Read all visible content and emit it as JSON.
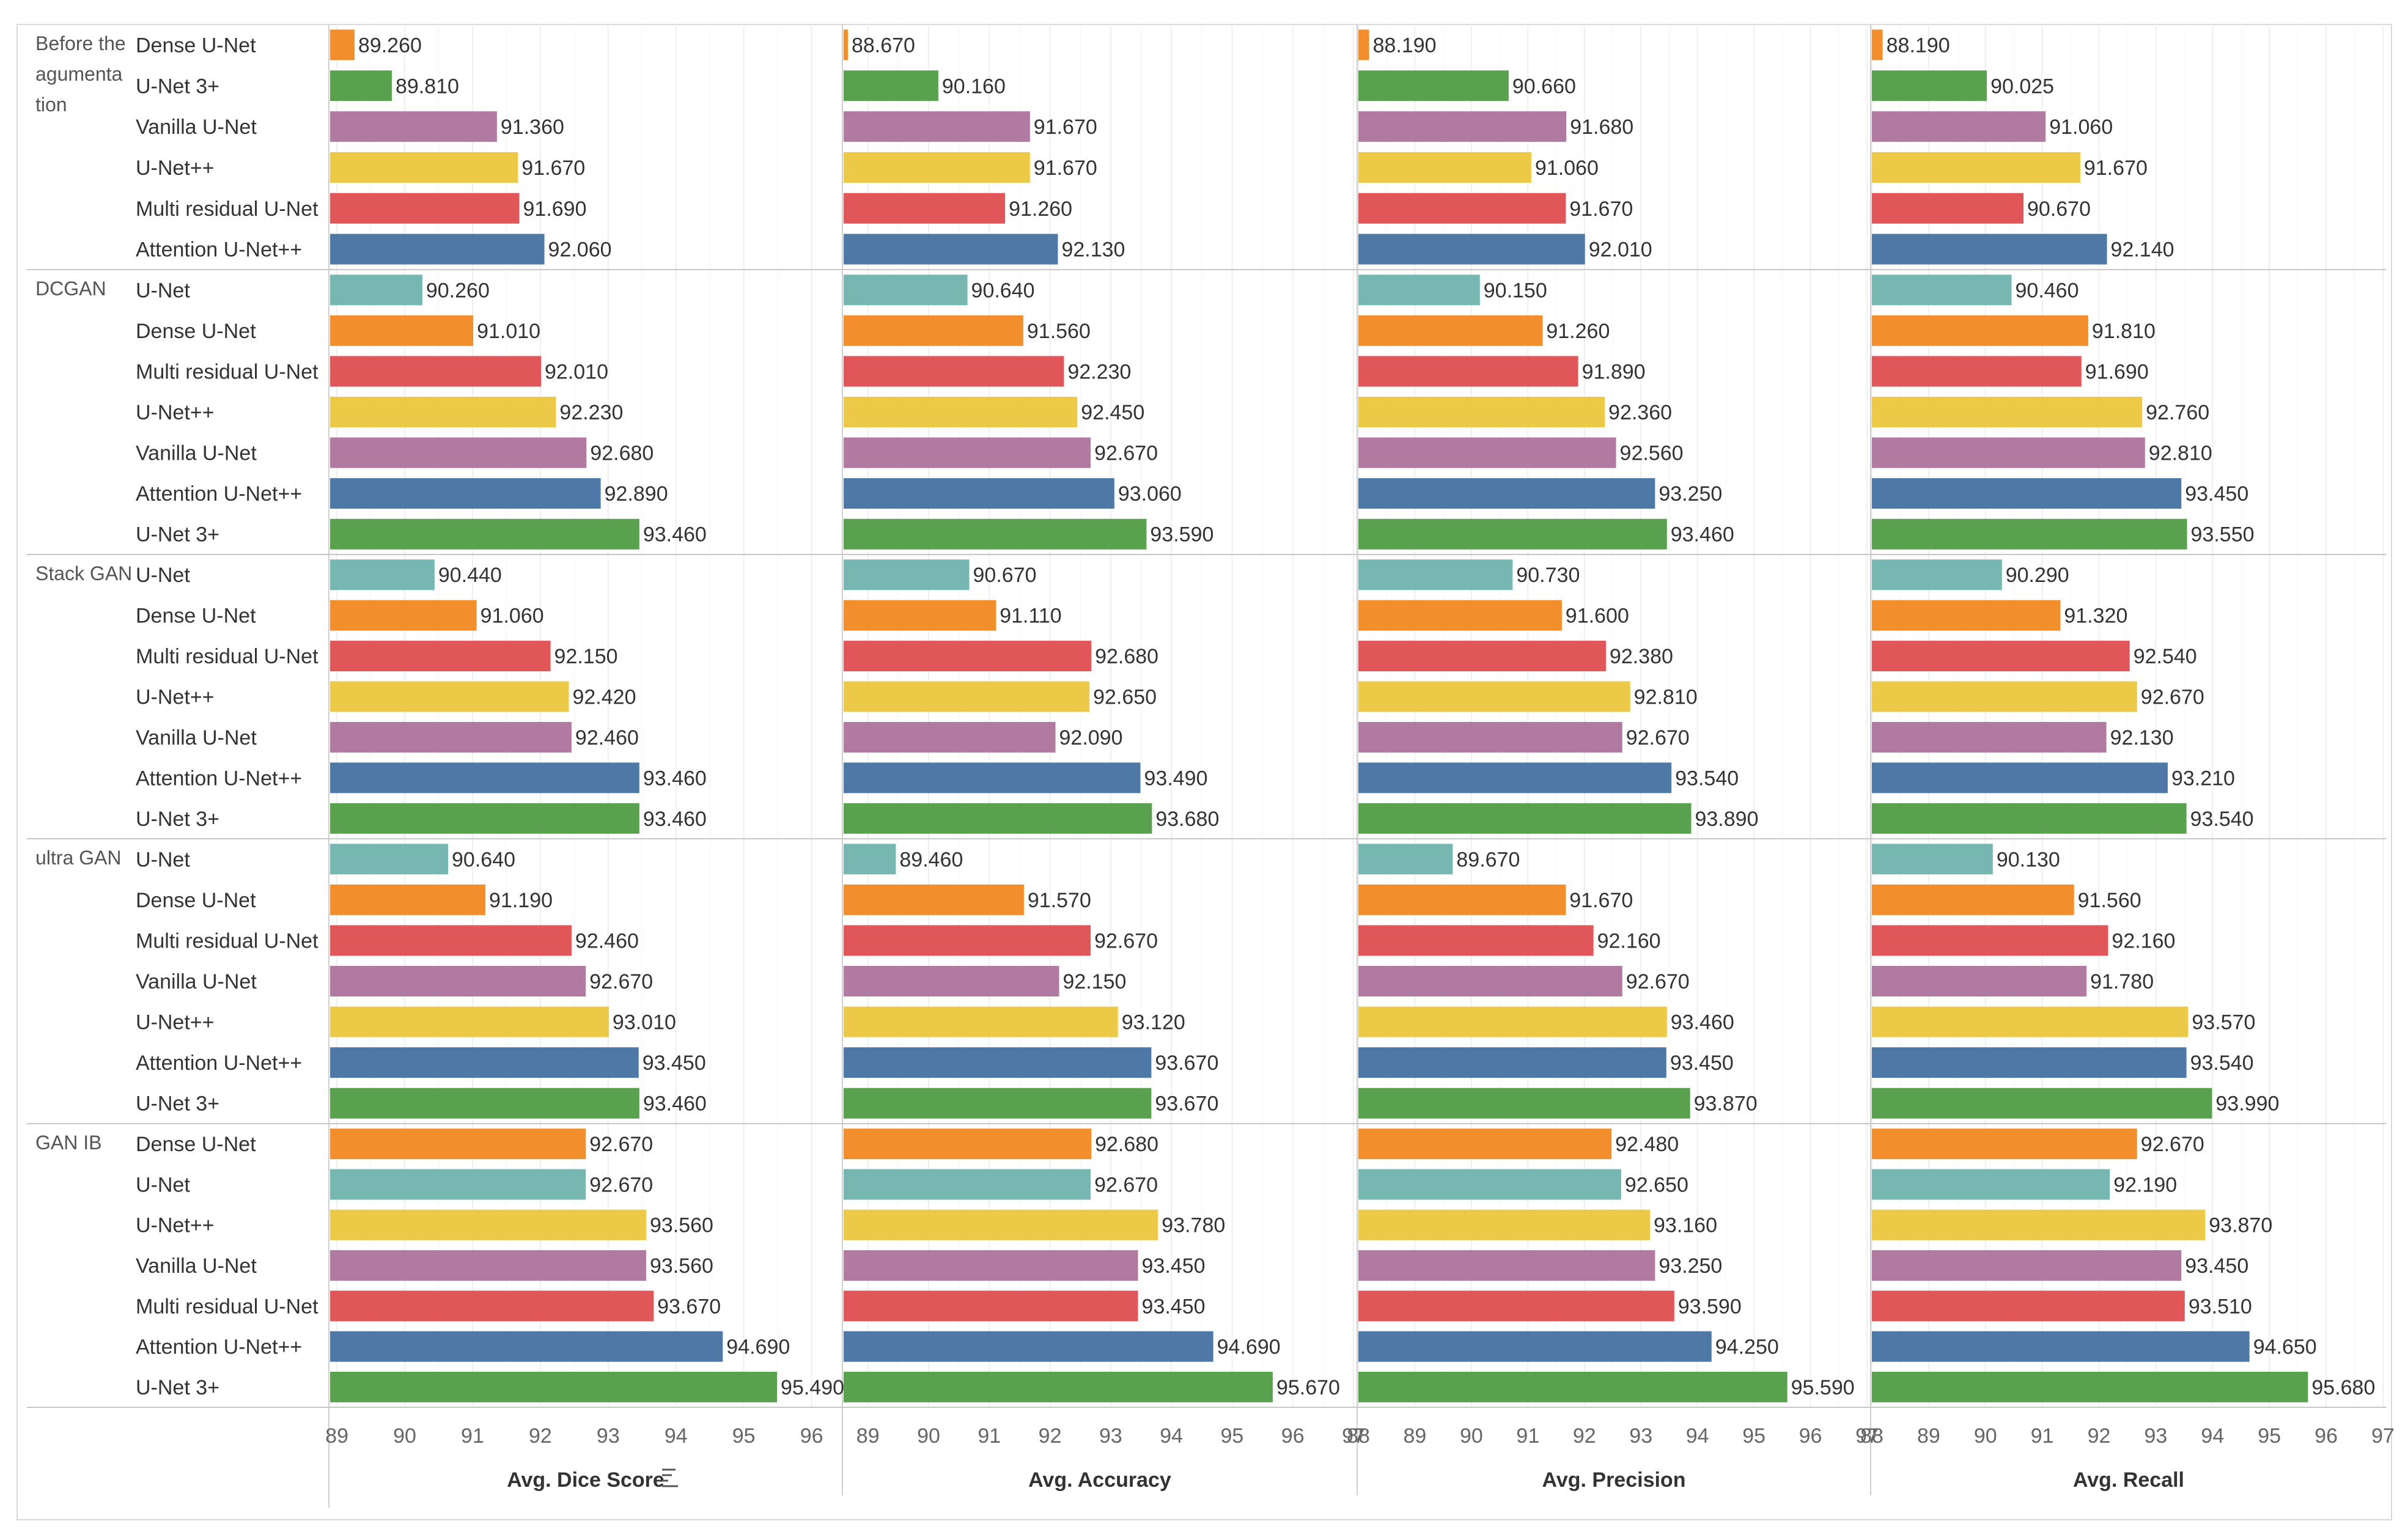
{
  "chart_data": {
    "type": "bar",
    "orientation": "horizontal",
    "measures": [
      {
        "key": "dice",
        "title": "Avg. Dice Score",
        "sort_icon": "sort-descending-icon",
        "xlim": [
          88.9,
          96.4
        ],
        "ticks": [
          89,
          90,
          91,
          92,
          93,
          94,
          95,
          96
        ]
      },
      {
        "key": "acc",
        "title": "Avg. Accuracy",
        "xlim": [
          88.6,
          97
        ],
        "ticks": [
          89,
          90,
          91,
          92,
          93,
          94,
          95,
          96,
          97
        ]
      },
      {
        "key": "prec",
        "title": "Avg. Precision",
        "xlim": [
          88,
          97
        ],
        "ticks": [
          88,
          89,
          90,
          91,
          92,
          93,
          94,
          95,
          96,
          97
        ]
      },
      {
        "key": "rec",
        "title": "Avg. Recall",
        "xlim": [
          88,
          97
        ],
        "ticks": [
          88,
          89,
          90,
          91,
          92,
          93,
          94,
          95,
          96,
          97
        ]
      }
    ],
    "model_colors": {
      "U-Net": "#76b7b2",
      "Dense U-Net": "#f28e2b",
      "U-Net 3+": "#59a14f",
      "Vanilla U-Net": "#b07aa1",
      "U-Net++": "#edc948",
      "Multi residual U-Net": "#e15759",
      "Attention U-Net++": "#4e79a7"
    },
    "groups": [
      {
        "name_lines": [
          "Before the",
          "agumenta",
          "tion"
        ],
        "rows": [
          {
            "model": "Dense U-Net",
            "values": [
              "89.260",
              "88.670",
              "88.190",
              "88.190"
            ]
          },
          {
            "model": "U-Net 3+",
            "values": [
              "89.810",
              "90.160",
              "90.660",
              "90.025"
            ]
          },
          {
            "model": "Vanilla U-Net",
            "values": [
              "91.360",
              "91.670",
              "91.680",
              "91.060"
            ]
          },
          {
            "model": "U-Net++",
            "values": [
              "91.670",
              "91.670",
              "91.060",
              "91.670"
            ]
          },
          {
            "model": "Multi residual U-Net",
            "values": [
              "91.690",
              "91.260",
              "91.670",
              "90.670"
            ]
          },
          {
            "model": "Attention U-Net++",
            "values": [
              "92.060",
              "92.130",
              "92.010",
              "92.140"
            ]
          }
        ]
      },
      {
        "name_lines": [
          "DCGAN"
        ],
        "rows": [
          {
            "model": "U-Net",
            "values": [
              "90.260",
              "90.640",
              "90.150",
              "90.460"
            ]
          },
          {
            "model": "Dense U-Net",
            "values": [
              "91.010",
              "91.560",
              "91.260",
              "91.810"
            ]
          },
          {
            "model": "Multi residual U-Net",
            "values": [
              "92.010",
              "92.230",
              "91.890",
              "91.690"
            ]
          },
          {
            "model": "U-Net++",
            "values": [
              "92.230",
              "92.450",
              "92.360",
              "92.760"
            ]
          },
          {
            "model": "Vanilla U-Net",
            "values": [
              "92.680",
              "92.670",
              "92.560",
              "92.810"
            ]
          },
          {
            "model": "Attention U-Net++",
            "values": [
              "92.890",
              "93.060",
              "93.250",
              "93.450"
            ]
          },
          {
            "model": "U-Net 3+",
            "values": [
              "93.460",
              "93.590",
              "93.460",
              "93.550"
            ]
          }
        ]
      },
      {
        "name_lines": [
          "Stack GAN"
        ],
        "rows": [
          {
            "model": "U-Net",
            "values": [
              "90.440",
              "90.670",
              "90.730",
              "90.290"
            ]
          },
          {
            "model": "Dense U-Net",
            "values": [
              "91.060",
              "91.110",
              "91.600",
              "91.320"
            ]
          },
          {
            "model": "Multi residual U-Net",
            "values": [
              "92.150",
              "92.680",
              "92.380",
              "92.540"
            ]
          },
          {
            "model": "U-Net++",
            "values": [
              "92.420",
              "92.650",
              "92.810",
              "92.670"
            ]
          },
          {
            "model": "Vanilla U-Net",
            "values": [
              "92.460",
              "92.090",
              "92.670",
              "92.130"
            ]
          },
          {
            "model": "Attention U-Net++",
            "values": [
              "93.460",
              "93.490",
              "93.540",
              "93.210"
            ]
          },
          {
            "model": "U-Net 3+",
            "values": [
              "93.460",
              "93.680",
              "93.890",
              "93.540"
            ]
          }
        ]
      },
      {
        "name_lines": [
          "ultra GAN"
        ],
        "rows": [
          {
            "model": "U-Net",
            "values": [
              "90.640",
              "89.460",
              "89.670",
              "90.130"
            ]
          },
          {
            "model": "Dense U-Net",
            "values": [
              "91.190",
              "91.570",
              "91.670",
              "91.560"
            ]
          },
          {
            "model": "Multi residual U-Net",
            "values": [
              "92.460",
              "92.670",
              "92.160",
              "92.160"
            ]
          },
          {
            "model": "Vanilla U-Net",
            "values": [
              "92.670",
              "92.150",
              "92.670",
              "91.780"
            ]
          },
          {
            "model": "U-Net++",
            "values": [
              "93.010",
              "93.120",
              "93.460",
              "93.570"
            ]
          },
          {
            "model": "Attention U-Net++",
            "values": [
              "93.450",
              "93.670",
              "93.450",
              "93.540"
            ]
          },
          {
            "model": "U-Net 3+",
            "values": [
              "93.460",
              "93.670",
              "93.870",
              "93.990"
            ]
          }
        ]
      },
      {
        "name_lines": [
          "GAN IB"
        ],
        "rows": [
          {
            "model": "Dense U-Net",
            "values": [
              "92.670",
              "92.680",
              "92.480",
              "92.670"
            ]
          },
          {
            "model": "U-Net",
            "values": [
              "92.670",
              "92.670",
              "92.650",
              "92.190"
            ]
          },
          {
            "model": "U-Net++",
            "values": [
              "93.560",
              "93.780",
              "93.160",
              "93.870"
            ]
          },
          {
            "model": "Vanilla U-Net",
            "values": [
              "93.560",
              "93.450",
              "93.250",
              "93.450"
            ]
          },
          {
            "model": "Multi residual U-Net",
            "values": [
              "93.670",
              "93.450",
              "93.590",
              "93.510"
            ]
          },
          {
            "model": "Attention U-Net++",
            "values": [
              "94.690",
              "94.690",
              "94.250",
              "94.650"
            ]
          },
          {
            "model": "U-Net 3+",
            "values": [
              "95.490",
              "95.670",
              "95.590",
              "95.680"
            ]
          }
        ]
      }
    ]
  }
}
